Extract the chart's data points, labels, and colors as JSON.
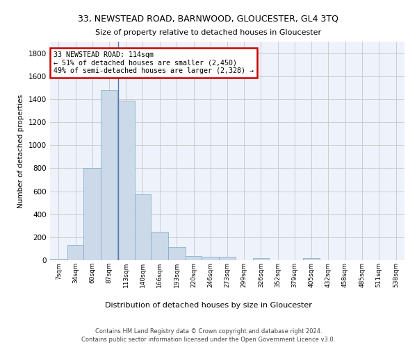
{
  "title": "33, NEWSTEAD ROAD, BARNWOOD, GLOUCESTER, GL4 3TQ",
  "subtitle": "Size of property relative to detached houses in Gloucester",
  "xlabel": "Distribution of detached houses by size in Gloucester",
  "ylabel": "Number of detached properties",
  "bar_color": "#ccd9e8",
  "bar_edge_color": "#7aaac8",
  "grid_color": "#c8c8c8",
  "background_color": "#ffffff",
  "plot_bg_color": "#eef2fa",
  "annotation_box_color": "#cc0000",
  "marker_line_color": "#5577aa",
  "categories": [
    "7sqm",
    "34sqm",
    "60sqm",
    "87sqm",
    "113sqm",
    "140sqm",
    "166sqm",
    "193sqm",
    "220sqm",
    "246sqm",
    "273sqm",
    "299sqm",
    "326sqm",
    "352sqm",
    "379sqm",
    "405sqm",
    "432sqm",
    "458sqm",
    "485sqm",
    "511sqm",
    "538sqm"
  ],
  "bar_heights": [
    10,
    130,
    800,
    1480,
    1390,
    575,
    250,
    115,
    35,
    30,
    30,
    0,
    20,
    0,
    0,
    20,
    0,
    0,
    0,
    0,
    0
  ],
  "marker_value": 114,
  "ylim": [
    0,
    1900
  ],
  "yticks": [
    0,
    200,
    400,
    600,
    800,
    1000,
    1200,
    1400,
    1600,
    1800
  ],
  "annotation_text": "33 NEWSTEAD ROAD: 114sqm\n← 51% of detached houses are smaller (2,450)\n49% of semi-detached houses are larger (2,328) →",
  "footer_line1": "Contains HM Land Registry data © Crown copyright and database right 2024.",
  "footer_line2": "Contains public sector information licensed under the Open Government Licence v3.0.",
  "bin_edges": [
    7,
    34,
    60,
    87,
    113,
    140,
    166,
    193,
    220,
    246,
    273,
    299,
    326,
    352,
    379,
    405,
    432,
    458,
    485,
    511,
    538,
    565
  ],
  "bin_width": 27
}
